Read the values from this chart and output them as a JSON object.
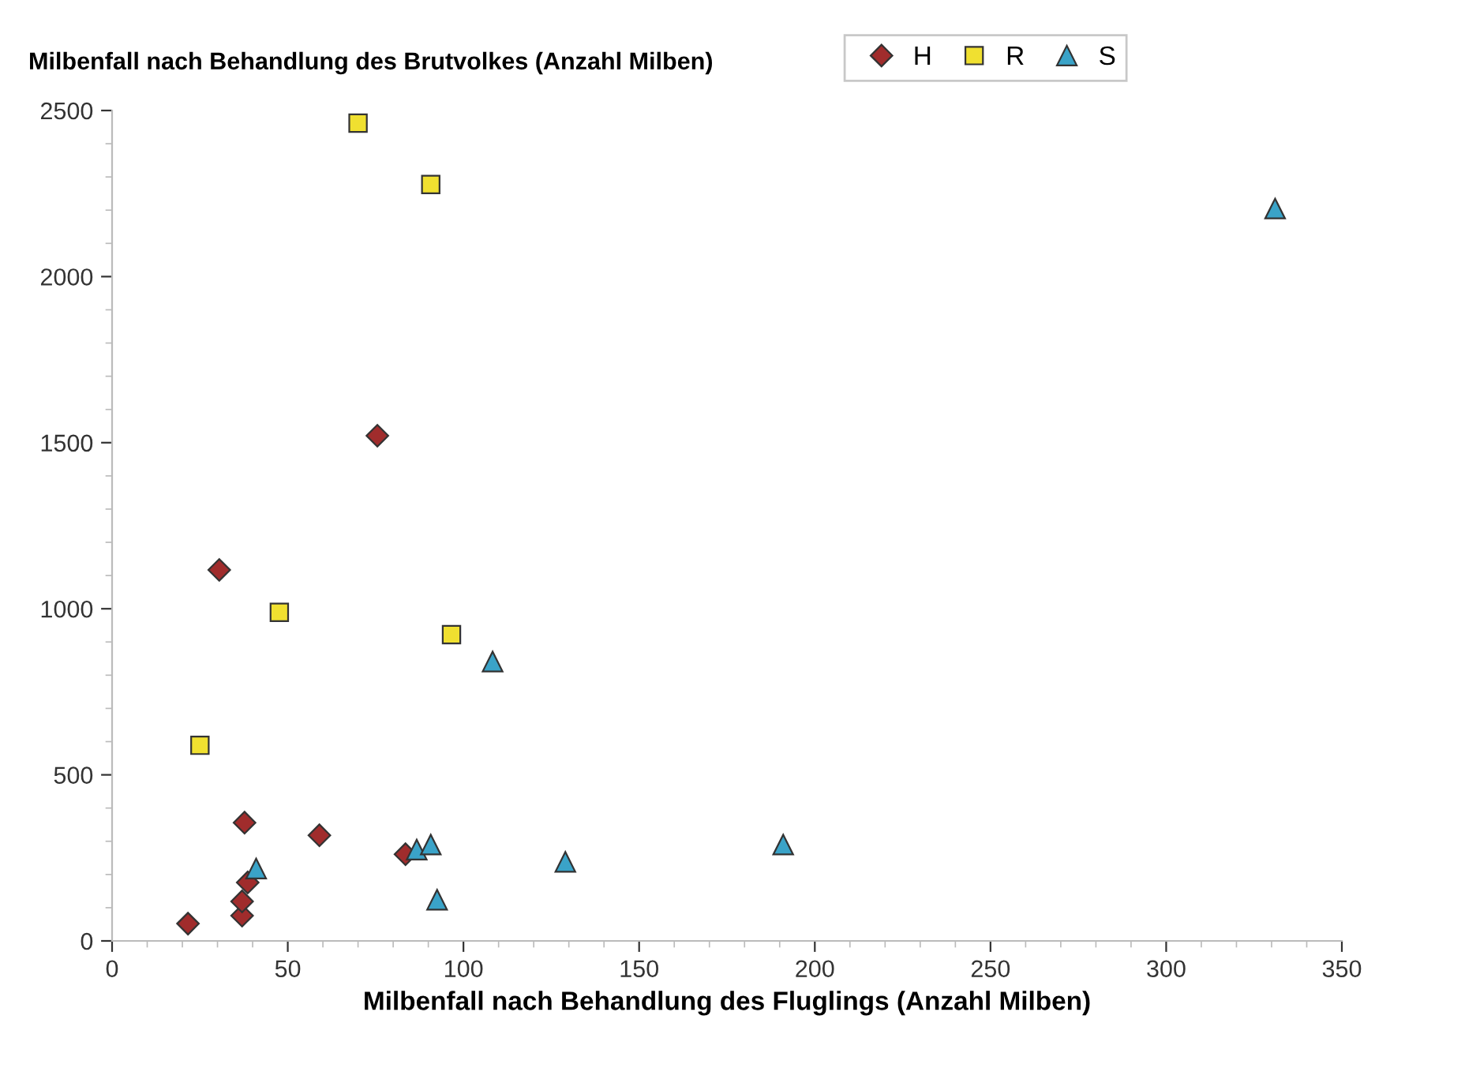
{
  "chart_data": {
    "type": "scatter",
    "title": "Milbenfall nach Behandlung des Brutvolkes (Anzahl Milben)",
    "xlabel": "Milbenfall nach Behandlung des Fluglings (Anzahl Milben)",
    "series": [
      {
        "name": "H",
        "color": "#a02c2c",
        "marker": "diamond",
        "x": [
          21.6,
          37,
          37,
          38.6,
          37.7,
          59,
          83.5,
          30.5,
          75.5
        ],
        "values": [
          52,
          76,
          119,
          176,
          356,
          318,
          261,
          1117,
          1521
        ]
      },
      {
        "name": "R",
        "color": "#f0e030",
        "marker": "square",
        "x": [
          25,
          47.6,
          70,
          90.7,
          96.6
        ],
        "values": [
          589,
          989,
          2462,
          2277,
          922
        ]
      },
      {
        "name": "S",
        "color": "#3aa3c8",
        "marker": "triangle",
        "x": [
          41,
          86.7,
          90.7,
          92.5,
          129,
          191,
          108.3,
          331
        ],
        "values": [
          218,
          275,
          290,
          124,
          238,
          290,
          841,
          2205
        ]
      }
    ],
    "xlim": [
      0,
      350
    ],
    "xticks": [
      0,
      50,
      100,
      150,
      200,
      250,
      300,
      350
    ],
    "ylim": [
      0,
      2500
    ],
    "yticks": [
      0,
      500,
      1000,
      1500,
      2000,
      2500
    ],
    "grid": false,
    "legend": "top"
  }
}
